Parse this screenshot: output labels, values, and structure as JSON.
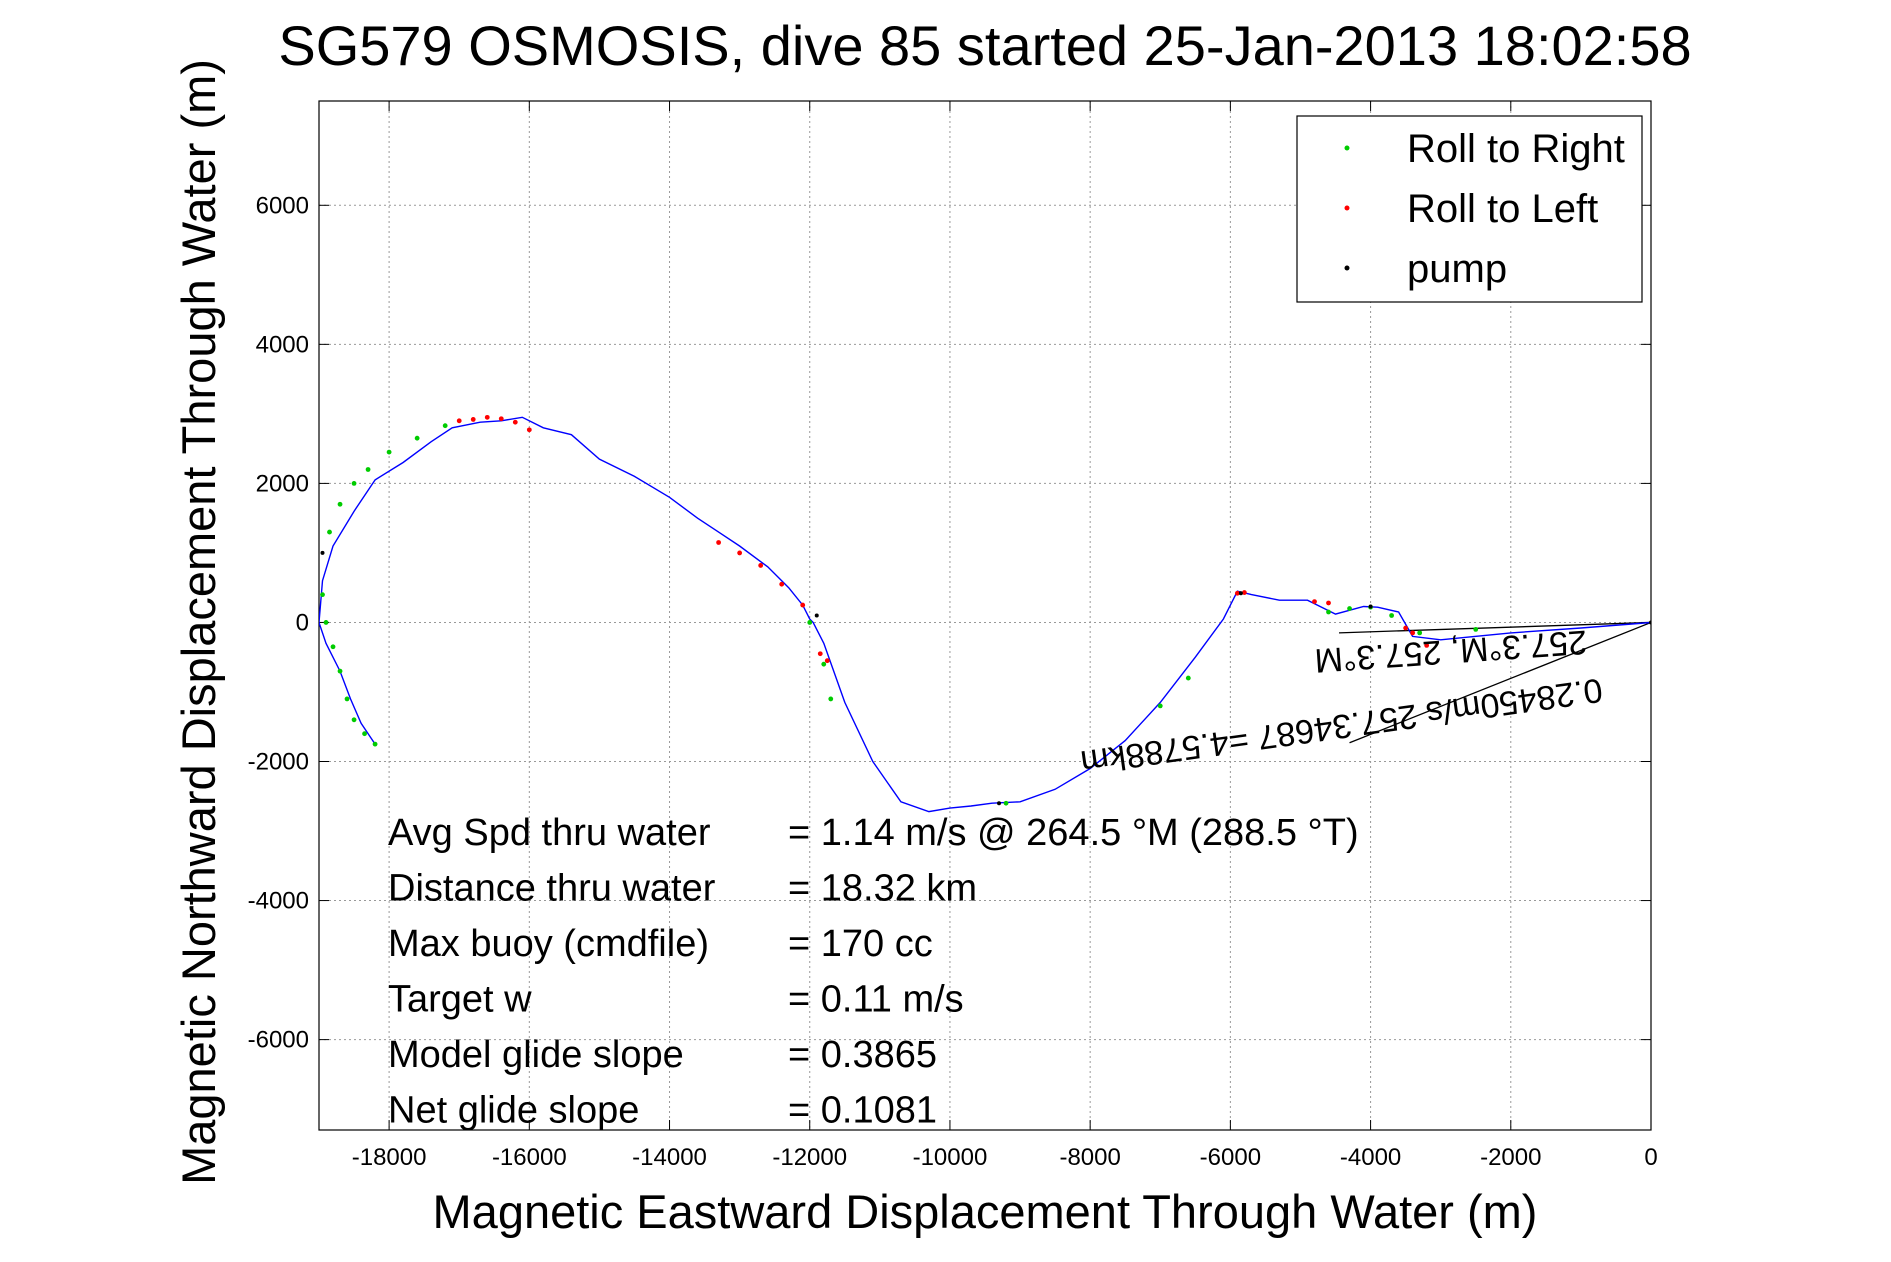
{
  "chart_data": {
    "type": "line",
    "title": "SG579 OSMOSIS, dive 85 started 25-Jan-2013 18:02:58",
    "xlabel": "Magnetic Eastward Displacement Through Water (m)",
    "ylabel": "Magnetic Northward Displacement Through Water (m)",
    "xlim": [
      -19000,
      0
    ],
    "ylim": [
      -7300,
      7500
    ],
    "xticks": [
      -18000,
      -16000,
      -14000,
      -12000,
      -10000,
      -8000,
      -6000,
      -4000,
      -2000,
      0
    ],
    "yticks": [
      -6000,
      -4000,
      -2000,
      0,
      2000,
      4000,
      6000
    ],
    "grid": true,
    "legend_position": "top-right",
    "colors": {
      "track": "#0000ff",
      "roll_right": "#00cc00",
      "roll_left": "#ff0000",
      "pump": "#000000",
      "depth_avg_current": "#000000"
    },
    "legend": [
      {
        "label": "Roll to Right",
        "color": "#00cc00"
      },
      {
        "label": "Roll to Left",
        "color": "#ff0000"
      },
      {
        "label": "pump",
        "color": "#000000"
      }
    ],
    "track": {
      "x": [
        0,
        -1000,
        -2000,
        -3000,
        -3400,
        -3600,
        -3900,
        -4100,
        -4500,
        -4900,
        -5300,
        -5700,
        -5900,
        -6100,
        -6500,
        -7000,
        -7500,
        -8000,
        -8500,
        -9000,
        -9400,
        -9700,
        -10000,
        -10300,
        -10700,
        -11100,
        -11500,
        -11800,
        -11950,
        -12000,
        -12100,
        -12300,
        -12600,
        -13000,
        -13300,
        -13600,
        -14000,
        -14500,
        -15000,
        -15400,
        -15800,
        -16100,
        -16400,
        -16700,
        -17100,
        -17400,
        -17800,
        -18200,
        -18500,
        -18800,
        -18950,
        -19000,
        -18900,
        -18700,
        -18550,
        -18400,
        -18200
      ],
      "y": [
        0,
        -80,
        -150,
        -250,
        -200,
        150,
        220,
        230,
        120,
        320,
        320,
        400,
        450,
        50,
        -500,
        -1150,
        -1700,
        -2100,
        -2400,
        -2580,
        -2600,
        -2640,
        -2670,
        -2720,
        -2580,
        -2000,
        -1150,
        -300,
        0,
        50,
        250,
        500,
        800,
        1100,
        1300,
        1500,
        1800,
        2100,
        2350,
        2700,
        2800,
        2950,
        2900,
        2880,
        2800,
        2600,
        2300,
        2050,
        1600,
        1100,
        600,
        0,
        -300,
        -700,
        -1100,
        -1450,
        -1750
      ]
    },
    "roll_right_points": {
      "x": [
        -18200,
        -18350,
        -18500,
        -18600,
        -18700,
        -18800,
        -18900,
        -18950,
        -18850,
        -18700,
        -18500,
        -18300,
        -18000,
        -17600,
        -17200,
        -12000,
        -11800,
        -11700,
        -9200,
        -7000,
        -6600,
        -4600,
        -4300,
        -4000,
        -3700,
        -3300,
        -2500
      ],
      "y": [
        -1750,
        -1600,
        -1400,
        -1100,
        -700,
        -350,
        0,
        400,
        1300,
        1700,
        2000,
        2200,
        2450,
        2650,
        2830,
        0,
        -600,
        -1100,
        -2600,
        -1200,
        -800,
        150,
        200,
        220,
        100,
        -150,
        -100
      ]
    },
    "roll_left_points": {
      "x": [
        -17000,
        -16800,
        -16600,
        -16400,
        -16200,
        -16000,
        -13300,
        -13000,
        -12700,
        -12400,
        -12100,
        -11850,
        -11750,
        -5900,
        -5800,
        -4800,
        -4600,
        -3500,
        -3400,
        -3200
      ],
      "y": [
        2900,
        2920,
        2950,
        2930,
        2880,
        2770,
        1150,
        1000,
        820,
        550,
        250,
        -450,
        -550,
        420,
        430,
        300,
        280,
        -80,
        -150,
        -330
      ]
    },
    "pump_points": {
      "x": [
        -18950,
        -11900,
        -9300,
        -5850,
        -4000,
        0
      ],
      "y": [
        1000,
        100,
        -2600,
        420,
        230,
        0
      ]
    },
    "current_lines": [
      {
        "x": [
          0,
          -4450
        ],
        "y": [
          0,
          -150
        ]
      },
      {
        "x": [
          0,
          -4300
        ],
        "y": [
          0,
          -1730
        ]
      }
    ],
    "annotations": {
      "current_label": "0.28450m/s 257.34687 =4.5788km",
      "overlap_label": "257.3°M, 257.3°M"
    },
    "stats": [
      {
        "label": "Avg Spd thru water",
        "value": "=  1.14 m/s @ 264.5 °M (288.5 °T)"
      },
      {
        "label": "Distance thru water",
        "value": "= 18.32 km"
      },
      {
        "label": "Max buoy (cmdfile)",
        "value": "= 170 cc"
      },
      {
        "label": "Target w",
        "value": "= 0.11 m/s"
      },
      {
        "label": "Model glide slope",
        "value": "= 0.3865"
      },
      {
        "label": "Net glide slope",
        "value": "= 0.1081"
      }
    ]
  }
}
